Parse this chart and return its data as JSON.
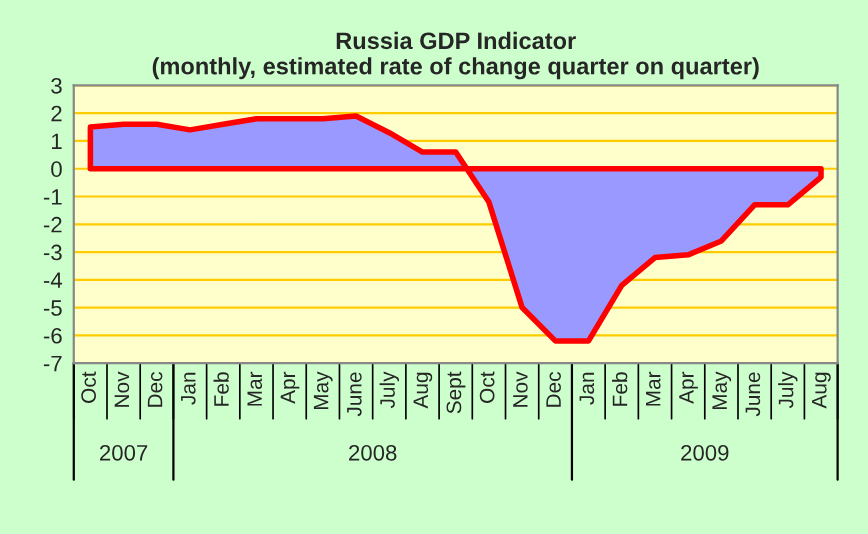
{
  "chart_data": {
    "type": "area",
    "title": "Russia GDP Indicator\n(monthly, estimated rate of change quarter on quarter)",
    "categories": [
      "Oct",
      "Nov",
      "Dec",
      "Jan",
      "Feb",
      "Mar",
      "Apr",
      "May",
      "June",
      "July",
      "Aug",
      "Sept",
      "Oct",
      "Nov",
      "Dec",
      "Jan",
      "Feb",
      "Mar",
      "Apr",
      "May",
      "June",
      "July",
      "Aug"
    ],
    "series": [
      {
        "color": "#9999ff",
        "values": [
          1.5,
          1.6,
          1.6,
          1.4,
          1.6,
          1.8,
          1.8,
          1.8,
          1.9,
          1.3,
          0.6,
          0.6,
          -1.2,
          -5.0,
          -6.2,
          -6.2,
          -4.2,
          -3.2,
          -3.1,
          -2.6,
          -1.3,
          -1.3,
          -0.3
        ]
      }
    ],
    "ylim": [
      -7,
      3
    ],
    "yticks": [
      -7,
      -6,
      -5,
      -4,
      -3,
      -2,
      -1,
      0,
      1,
      2,
      3
    ],
    "grid": "y",
    "annotations": [
      "2007",
      "2008",
      "2009"
    ]
  }
}
